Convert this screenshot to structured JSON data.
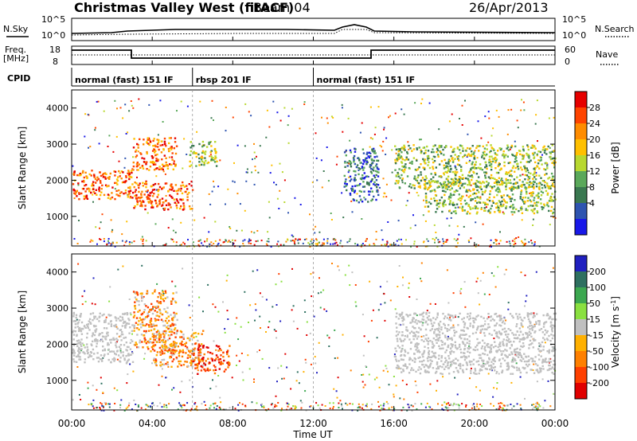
{
  "header": {
    "station": "Christmas Valley West (fitACF)",
    "beam": "Beam 04",
    "date": "26/Apr/2013"
  },
  "panels": {
    "nsky_label": "N.Sky",
    "nsearch_label": "N.Search",
    "nsky_ticks": [
      "10^5",
      "10^0"
    ],
    "nsky_right_ticks": [
      "10^5",
      "10^0"
    ],
    "freq_label": "Freq.",
    "freq_unit": "[MHz]",
    "freq_ticks": [
      "18",
      "8"
    ],
    "nave_label": "Nave",
    "nave_ticks": [
      "60",
      "0"
    ],
    "cpid_label": "CPID"
  },
  "cpid_segments": [
    {
      "label": "normal (fast) 151 IF",
      "start_h": 0,
      "end_h": 6
    },
    {
      "label": "rbsp 201 IF",
      "start_h": 6,
      "end_h": 12
    },
    {
      "label": "normal (fast) 151 IF",
      "start_h": 12,
      "end_h": 24
    }
  ],
  "time_axis": {
    "xlabel": "Time UT",
    "ticks": [
      "00:00",
      "04:00",
      "08:00",
      "12:00",
      "16:00",
      "20:00",
      "00:00"
    ],
    "tick_hours": [
      0,
      4,
      8,
      12,
      16,
      20,
      24
    ]
  },
  "chart_data": [
    {
      "type": "heatmap",
      "title": "Power",
      "ylabel": "Slant Range [km]",
      "yticks": [
        1000,
        2000,
        3000,
        4000
      ],
      "ylim": [
        180,
        4500
      ],
      "xlim": [
        0,
        24
      ],
      "colorbar": {
        "label": "Power [dB]",
        "ticks": [
          "28",
          "24",
          "20",
          "16",
          "12",
          "8",
          "4"
        ],
        "colors": [
          "#e60000",
          "#ff4400",
          "#ff8c00",
          "#ffc000",
          "#b8d830",
          "#5aa85a",
          "#3a7850",
          "#2e54b0",
          "#1818e8"
        ]
      },
      "regions": [
        {
          "x0": 0.0,
          "x1": 3.0,
          "y0": 1500,
          "y1": 2300,
          "level": "high"
        },
        {
          "x0": 3.0,
          "x1": 5.2,
          "y0": 2300,
          "y1": 3200,
          "level": "high"
        },
        {
          "x0": 3.0,
          "x1": 6.0,
          "y0": 1200,
          "y1": 2000,
          "level": "high"
        },
        {
          "x0": 5.8,
          "x1": 7.2,
          "y0": 2400,
          "y1": 3100,
          "level": "mid"
        },
        {
          "x0": 13.5,
          "x1": 15.2,
          "y0": 1400,
          "y1": 2900,
          "level": "low"
        },
        {
          "x0": 16.0,
          "x1": 24.0,
          "y0": 1800,
          "y1": 3000,
          "level": "mid"
        },
        {
          "x0": 17.5,
          "x1": 24.0,
          "y0": 1100,
          "y1": 2000,
          "level": "mid"
        }
      ]
    },
    {
      "type": "heatmap",
      "title": "Velocity",
      "ylabel": "Slant Range [km]",
      "yticks": [
        1000,
        2000,
        3000,
        4000
      ],
      "ylim": [
        180,
        4500
      ],
      "xlim": [
        0,
        24
      ],
      "colorbar": {
        "label": "Velocity [m s",
        "label_sup": "-1",
        "label_end": "]",
        "ticks": [
          "200",
          "100",
          "50",
          "15",
          "-15",
          "-50",
          "-100",
          "-200"
        ],
        "colors": [
          "#2020c0",
          "#2e7060",
          "#3ca850",
          "#8ae040",
          "#c0c0c0",
          "#ffb000",
          "#ff8000",
          "#ff4000",
          "#e00000"
        ]
      },
      "regions": [
        {
          "x0": 0.0,
          "x1": 3.0,
          "y0": 1500,
          "y1": 2900,
          "level": "zero"
        },
        {
          "x0": 3.0,
          "x1": 5.2,
          "y0": 1800,
          "y1": 3500,
          "level": "neg"
        },
        {
          "x0": 4.0,
          "x1": 6.5,
          "y0": 1400,
          "y1": 2400,
          "level": "neg"
        },
        {
          "x0": 6.0,
          "x1": 7.8,
          "y0": 1200,
          "y1": 2000,
          "level": "strongneg"
        },
        {
          "x0": 16.0,
          "x1": 24.0,
          "y0": 1200,
          "y1": 2900,
          "level": "zero"
        }
      ]
    }
  ]
}
